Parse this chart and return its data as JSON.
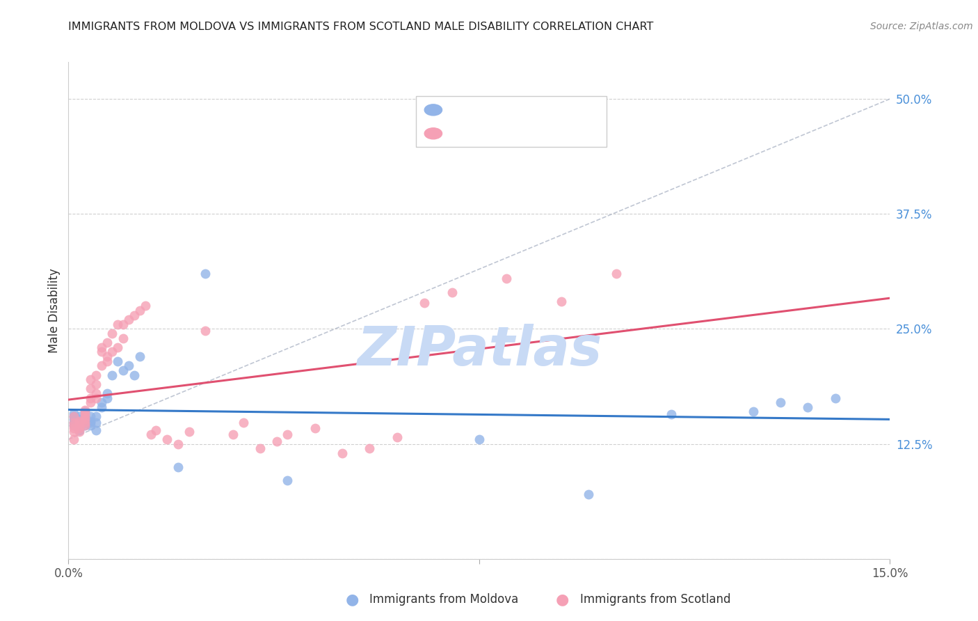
{
  "title": "IMMIGRANTS FROM MOLDOVA VS IMMIGRANTS FROM SCOTLAND MALE DISABILITY CORRELATION CHART",
  "source": "Source: ZipAtlas.com",
  "ylabel": "Male Disability",
  "right_yticks": [
    0.125,
    0.25,
    0.375,
    0.5
  ],
  "right_yticklabels": [
    "12.5%",
    "25.0%",
    "37.5%",
    "50.0%"
  ],
  "xlim": [
    0.0,
    0.15
  ],
  "ylim": [
    0.0,
    0.54
  ],
  "label1": "Immigrants from Moldova",
  "label2": "Immigrants from Scotland",
  "color1": "#92b4e8",
  "color2": "#f5a0b5",
  "trendline1_color": "#3579c8",
  "trendline2_color": "#e05070",
  "diagonal_color": "#b0b8c8",
  "watermark": "ZIPatlas",
  "watermark_color": "#c8daf5",
  "moldova_x": [
    0.001,
    0.001,
    0.001,
    0.001,
    0.001,
    0.002,
    0.002,
    0.002,
    0.002,
    0.002,
    0.002,
    0.003,
    0.003,
    0.003,
    0.003,
    0.003,
    0.004,
    0.004,
    0.004,
    0.004,
    0.005,
    0.005,
    0.005,
    0.006,
    0.006,
    0.007,
    0.007,
    0.008,
    0.009,
    0.01,
    0.011,
    0.012,
    0.013,
    0.02,
    0.025,
    0.04,
    0.075,
    0.095,
    0.11,
    0.125,
    0.13,
    0.135,
    0.14
  ],
  "moldova_y": [
    0.155,
    0.148,
    0.145,
    0.152,
    0.158,
    0.148,
    0.152,
    0.155,
    0.145,
    0.14,
    0.142,
    0.15,
    0.145,
    0.148,
    0.155,
    0.16,
    0.145,
    0.155,
    0.148,
    0.15,
    0.14,
    0.148,
    0.155,
    0.17,
    0.165,
    0.175,
    0.18,
    0.2,
    0.215,
    0.205,
    0.21,
    0.2,
    0.22,
    0.1,
    0.31,
    0.085,
    0.13,
    0.07,
    0.157,
    0.16,
    0.17,
    0.165,
    0.175
  ],
  "scotland_x": [
    0.001,
    0.001,
    0.001,
    0.001,
    0.001,
    0.001,
    0.002,
    0.002,
    0.002,
    0.002,
    0.002,
    0.003,
    0.003,
    0.003,
    0.003,
    0.003,
    0.003,
    0.004,
    0.004,
    0.004,
    0.004,
    0.005,
    0.005,
    0.005,
    0.005,
    0.006,
    0.006,
    0.006,
    0.007,
    0.007,
    0.007,
    0.008,
    0.008,
    0.009,
    0.009,
    0.01,
    0.01,
    0.011,
    0.012,
    0.013,
    0.014,
    0.015,
    0.016,
    0.018,
    0.02,
    0.022,
    0.025,
    0.03,
    0.032,
    0.035,
    0.038,
    0.04,
    0.045,
    0.05,
    0.055,
    0.06,
    0.065,
    0.07,
    0.08,
    0.09,
    0.1
  ],
  "scotland_y": [
    0.155,
    0.148,
    0.145,
    0.142,
    0.138,
    0.13,
    0.15,
    0.145,
    0.148,
    0.142,
    0.138,
    0.155,
    0.148,
    0.145,
    0.152,
    0.158,
    0.162,
    0.17,
    0.175,
    0.185,
    0.195,
    0.175,
    0.18,
    0.19,
    0.2,
    0.21,
    0.225,
    0.23,
    0.215,
    0.22,
    0.235,
    0.225,
    0.245,
    0.23,
    0.255,
    0.24,
    0.255,
    0.26,
    0.265,
    0.27,
    0.275,
    0.135,
    0.14,
    0.13,
    0.125,
    0.138,
    0.248,
    0.135,
    0.148,
    0.12,
    0.128,
    0.135,
    0.142,
    0.115,
    0.12,
    0.132,
    0.278,
    0.29,
    0.305,
    0.28,
    0.31
  ]
}
